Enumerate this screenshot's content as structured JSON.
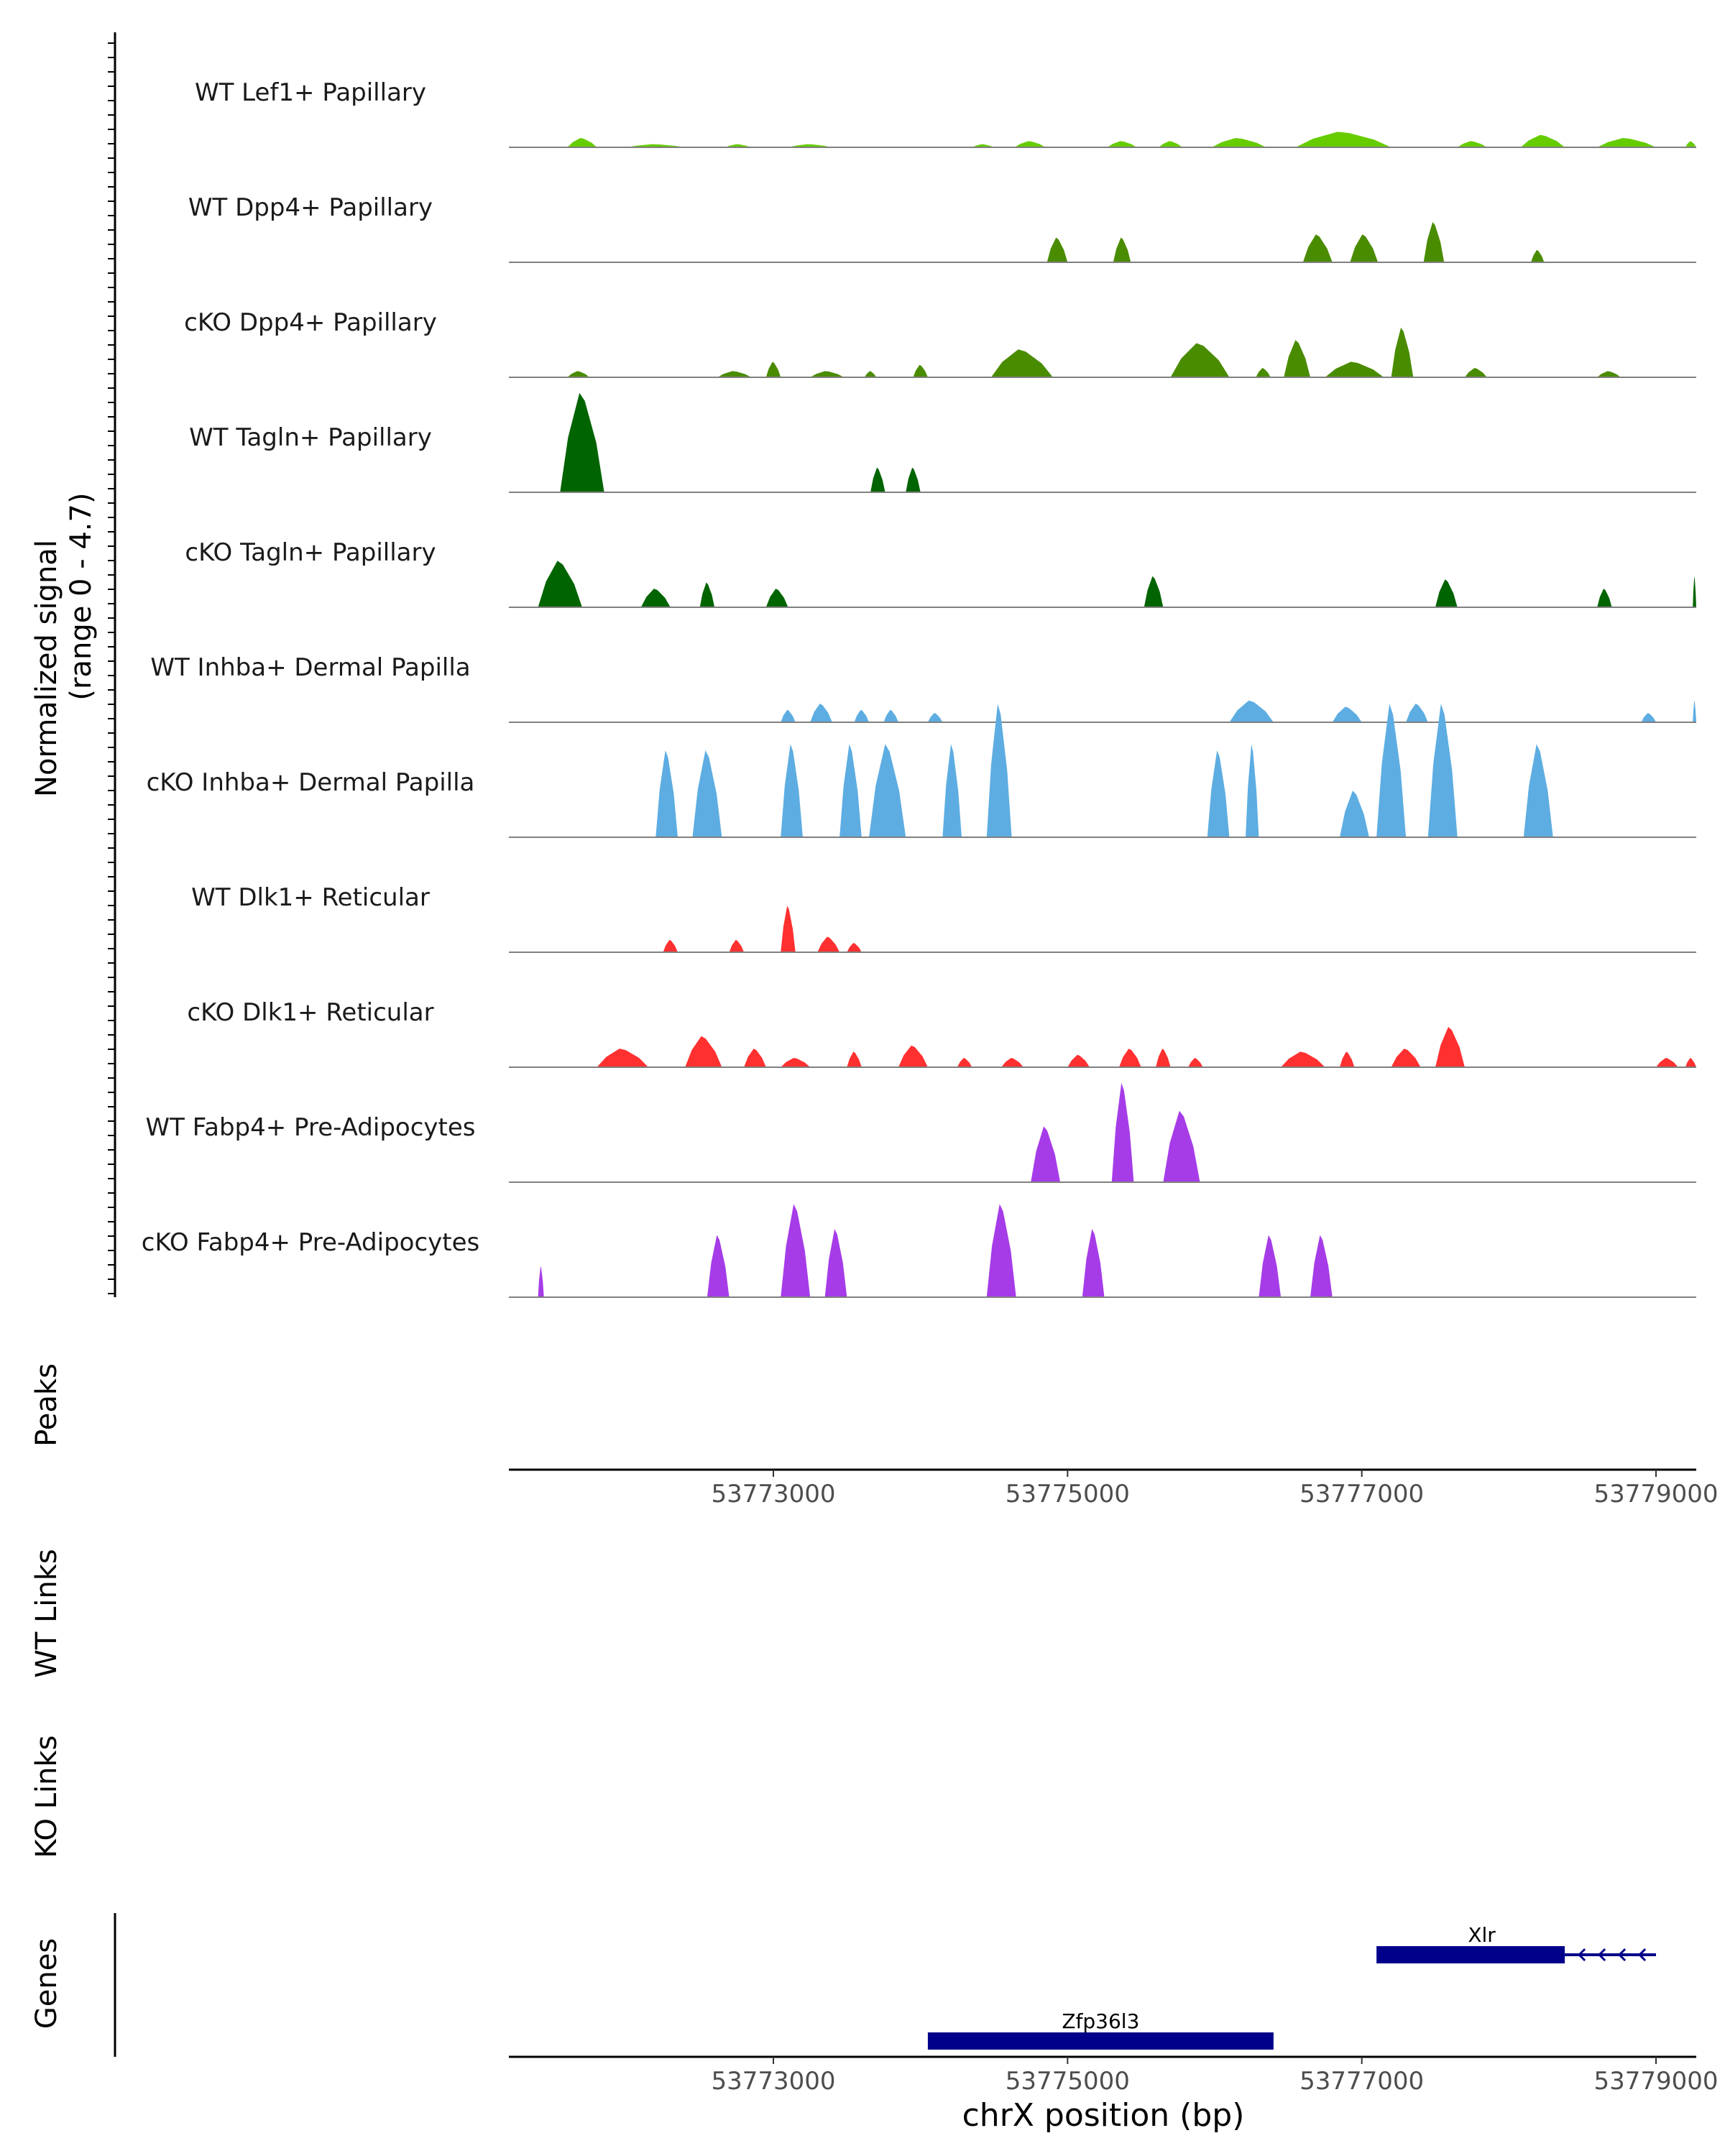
{
  "chart_data": {
    "type": "area",
    "subtype": "genome coverage track plot",
    "y_axis_label": "Normalized signal",
    "y_axis_range_label": "(range 0 - 4.7)",
    "ylim": [
      0,
      4.7
    ],
    "x_axis_label": "chrX position (bp)",
    "xlim": [
      53771200,
      53779300
    ],
    "x_ticks": [
      53773000,
      53775000,
      53777000,
      53779000
    ],
    "x_tick_labels": [
      "53773000",
      "53775000",
      "53777000",
      "53779000"
    ],
    "tracks": [
      {
        "name": "WT Lef1+ Papillary",
        "color": "#66CC00",
        "peaks": [
          [
            53771600,
            53771800,
            0.3
          ],
          [
            53772000,
            53772400,
            0.1
          ],
          [
            53772670,
            53772850,
            0.1
          ],
          [
            53773100,
            53773400,
            0.1
          ],
          [
            53774350,
            53774500,
            0.1
          ],
          [
            53774640,
            53774850,
            0.2
          ],
          [
            53775270,
            53775470,
            0.2
          ],
          [
            53775620,
            53775780,
            0.2
          ],
          [
            53775980,
            53776350,
            0.3
          ],
          [
            53776550,
            53777200,
            0.5
          ],
          [
            53777650,
            53777850,
            0.2
          ],
          [
            53778080,
            53778380,
            0.4
          ],
          [
            53778600,
            53779000,
            0.3
          ],
          [
            53779200,
            53779400,
            0.2
          ],
          [
            53779650,
            53779800,
            0.1
          ]
        ]
      },
      {
        "name": "WT Dpp4+ Papillary",
        "color": "#4A8C00",
        "peaks": [
          [
            53774860,
            53775000,
            0.8
          ],
          [
            53775310,
            53775430,
            0.8
          ],
          [
            53776600,
            53776800,
            0.9
          ],
          [
            53776920,
            53777110,
            0.9
          ],
          [
            53777420,
            53777560,
            1.3
          ],
          [
            53778150,
            53778240,
            0.4
          ],
          [
            53779550,
            53779650,
            0.4
          ],
          [
            53779880,
            53780000,
            0.4
          ]
        ]
      },
      {
        "name": "cKO Dpp4+ Papillary",
        "color": "#4A8C00",
        "peaks": [
          [
            53771600,
            53771750,
            0.2
          ],
          [
            53772620,
            53772850,
            0.2
          ],
          [
            53772950,
            53773050,
            0.5
          ],
          [
            53773250,
            53773480,
            0.2
          ],
          [
            53773620,
            53773700,
            0.2
          ],
          [
            53773950,
            53774050,
            0.4
          ],
          [
            53774480,
            53774900,
            0.9
          ],
          [
            53775700,
            53776100,
            1.1
          ],
          [
            53776280,
            53776380,
            0.3
          ],
          [
            53776470,
            53776650,
            1.2
          ],
          [
            53776750,
            53777150,
            0.5
          ],
          [
            53777200,
            53777350,
            1.6
          ],
          [
            53777700,
            53777850,
            0.3
          ],
          [
            53778600,
            53778760,
            0.2
          ]
        ]
      },
      {
        "name": "WT Tagln+ Papillary",
        "color": "#006400",
        "peaks": [
          [
            53771550,
            53771850,
            3.2
          ],
          [
            53773660,
            53773760,
            0.8
          ],
          [
            53773900,
            53774000,
            0.8
          ]
        ]
      },
      {
        "name": "cKO Tagln+ Papillary",
        "color": "#006400",
        "peaks": [
          [
            53771400,
            53771700,
            1.5
          ],
          [
            53772100,
            53772300,
            0.6
          ],
          [
            53772500,
            53772600,
            0.8
          ],
          [
            53772950,
            53773100,
            0.6
          ],
          [
            53775520,
            53775650,
            1.0
          ],
          [
            53777500,
            53777650,
            0.9
          ],
          [
            53778600,
            53778700,
            0.6
          ],
          [
            53779250,
            53779400,
            1.0
          ],
          [
            53779680,
            53779850,
            0.5
          ],
          [
            53780500,
            53780560,
            1.0
          ]
        ]
      },
      {
        "name": "WT Inhba+ Dermal Papilla",
        "color": "#5DADE2",
        "peaks": [
          [
            53773050,
            53773150,
            0.4
          ],
          [
            53773250,
            53773400,
            0.6
          ],
          [
            53773550,
            53773650,
            0.4
          ],
          [
            53773750,
            53773850,
            0.4
          ],
          [
            53774050,
            53774150,
            0.3
          ],
          [
            53776100,
            53776400,
            0.7
          ],
          [
            53776800,
            53777000,
            0.5
          ],
          [
            53777300,
            53777450,
            0.6
          ],
          [
            53778900,
            53779000,
            0.3
          ],
          [
            53779250,
            53779450,
            0.7
          ]
        ]
      },
      {
        "name": "cKO Inhba+ Dermal Papilla",
        "color": "#5DADE2",
        "peaks": [
          [
            53772200,
            53772350,
            2.8
          ],
          [
            53772450,
            53772650,
            2.8
          ],
          [
            53773050,
            53773200,
            3.0
          ],
          [
            53773450,
            53773600,
            3.0
          ],
          [
            53773650,
            53773900,
            3.0
          ],
          [
            53774150,
            53774280,
            3.0
          ],
          [
            53774450,
            53774620,
            4.3
          ],
          [
            53775950,
            53776100,
            2.8
          ],
          [
            53776210,
            53776300,
            3.0
          ],
          [
            53776850,
            53777050,
            1.5
          ],
          [
            53777100,
            53777300,
            4.3
          ],
          [
            53777450,
            53777650,
            4.3
          ],
          [
            53778100,
            53778300,
            3.0
          ],
          [
            53779650,
            53779800,
            3.0
          ]
        ]
      },
      {
        "name": "WT Dlk1+ Reticular",
        "color": "#FF3030",
        "peaks": [
          [
            53772250,
            53772350,
            0.4
          ],
          [
            53772700,
            53772800,
            0.4
          ],
          [
            53773050,
            53773150,
            1.5
          ],
          [
            53773300,
            53773450,
            0.5
          ],
          [
            53773500,
            53773600,
            0.3
          ]
        ]
      },
      {
        "name": "cKO Dlk1+ Reticular",
        "color": "#FF3030",
        "peaks": [
          [
            53771800,
            53772150,
            0.6
          ],
          [
            53772400,
            53772650,
            1.0
          ],
          [
            53772800,
            53772950,
            0.6
          ],
          [
            53773050,
            53773250,
            0.3
          ],
          [
            53773500,
            53773600,
            0.5
          ],
          [
            53773850,
            53774050,
            0.7
          ],
          [
            53774250,
            53774350,
            0.3
          ],
          [
            53774550,
            53774700,
            0.3
          ],
          [
            53775000,
            53775150,
            0.4
          ],
          [
            53775350,
            53775500,
            0.6
          ],
          [
            53775600,
            53775700,
            0.6
          ],
          [
            53775820,
            53775920,
            0.3
          ],
          [
            53776450,
            53776750,
            0.5
          ],
          [
            53776850,
            53776950,
            0.5
          ],
          [
            53777200,
            53777400,
            0.6
          ],
          [
            53777500,
            53777700,
            1.3
          ],
          [
            53779000,
            53779150,
            0.3
          ],
          [
            53779200,
            53779300,
            0.3
          ],
          [
            53780100,
            53780200,
            0.3
          ],
          [
            53780800,
            53780900,
            0.3
          ]
        ]
      },
      {
        "name": "WT Fabp4+ Pre-Adipocytes",
        "color": "#A63CE8",
        "peaks": [
          [
            53774750,
            53774950,
            1.8
          ],
          [
            53775300,
            53775450,
            3.2
          ],
          [
            53775650,
            53775900,
            2.3
          ]
        ]
      },
      {
        "name": "cKO Fabp4+ Pre-Adipocytes",
        "color": "#A63CE8",
        "peaks": [
          [
            53771400,
            53771440,
            1.0
          ],
          [
            53772550,
            53772700,
            2.0
          ],
          [
            53773050,
            53773250,
            3.0
          ],
          [
            53773350,
            53773500,
            2.2
          ],
          [
            53774450,
            53774650,
            3.0
          ],
          [
            53775100,
            53775250,
            2.2
          ],
          [
            53776300,
            53776450,
            2.0
          ],
          [
            53776650,
            53776800,
            2.0
          ]
        ]
      }
    ],
    "peaks_track_label": "Peaks",
    "links_tracks": [
      "WT Links",
      "KO Links"
    ],
    "genes_track_label": "Genes",
    "genes": [
      {
        "name": "Xlr",
        "start": 53777100,
        "end": 53778380,
        "strand": "-",
        "extends_to": 53779000
      },
      {
        "name": "Zfp36l3",
        "start": 53774050,
        "end": 53776400,
        "strand": "+"
      }
    ]
  }
}
